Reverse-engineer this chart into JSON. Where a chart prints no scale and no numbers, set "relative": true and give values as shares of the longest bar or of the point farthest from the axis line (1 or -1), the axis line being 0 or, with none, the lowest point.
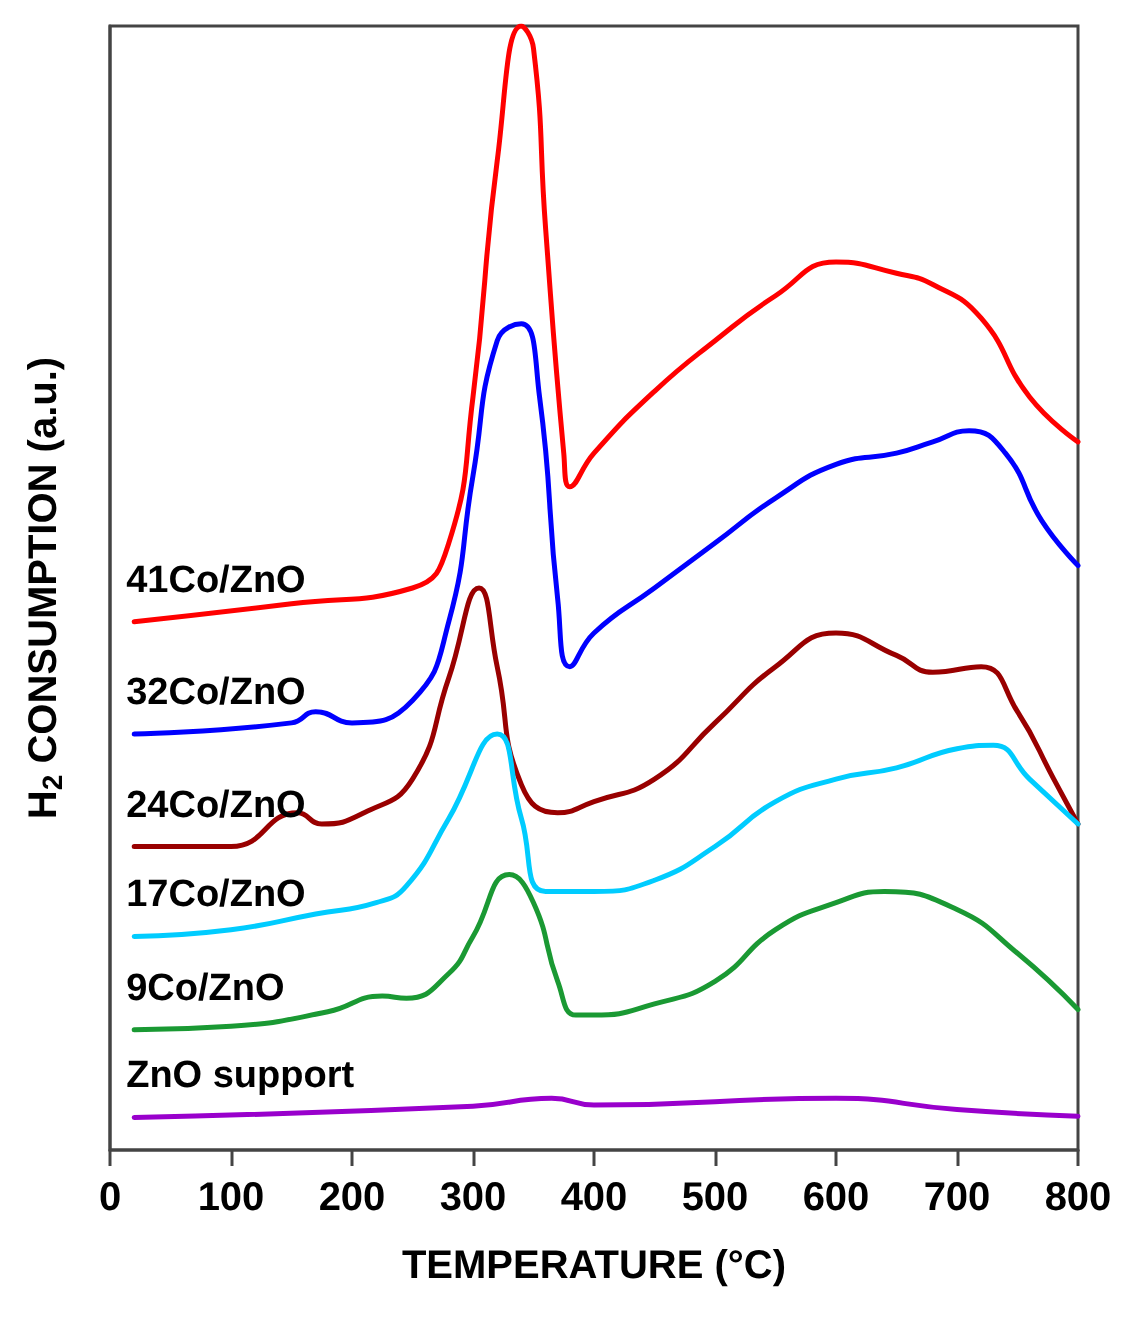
{
  "chart_data": {
    "type": "line",
    "relative": true,
    "xlabel": "TEMPERATURE (°C)",
    "ylabel": "H$_{2}$ CONSUMPTION (a.u.)",
    "xlim": [
      0,
      800
    ],
    "xticks": [
      0,
      100,
      200,
      300,
      400,
      500,
      600,
      700,
      800
    ],
    "marker": "none",
    "grid": false,
    "series": [
      {
        "name": "41Co/ZnO",
        "color": "#ff0000",
        "x": [
          20,
          150,
          250,
          280,
          300,
          320,
          340,
          350,
          360,
          375,
          380,
          400,
          450,
          500,
          550,
          600,
          650,
          680,
          720,
          760,
          800
        ],
        "values": [
          0.47,
          0.486,
          0.5,
          0.54,
          0.67,
          0.88,
          1.0,
          0.98,
          0.82,
          0.62,
          0.59,
          0.62,
          0.675,
          0.72,
          0.76,
          0.79,
          0.78,
          0.77,
          0.74,
          0.67,
          0.63
        ]
      },
      {
        "name": "32Co/ZnO",
        "color": "#0000ff",
        "x": [
          20,
          150,
          170,
          200,
          250,
          280,
          300,
          320,
          340,
          355,
          370,
          380,
          400,
          450,
          500,
          550,
          600,
          650,
          680,
          710,
          740,
          770,
          800
        ],
        "values": [
          0.37,
          0.38,
          0.39,
          0.38,
          0.4,
          0.47,
          0.6,
          0.72,
          0.735,
          0.67,
          0.49,
          0.43,
          0.46,
          0.5,
          0.54,
          0.58,
          0.61,
          0.62,
          0.63,
          0.64,
          0.62,
          0.56,
          0.52
        ]
      },
      {
        "name": "24Co/ZnO",
        "color": "#990000",
        "x": [
          20,
          100,
          155,
          175,
          210,
          250,
          280,
          305,
          320,
          340,
          370,
          400,
          450,
          500,
          550,
          600,
          650,
          680,
          720,
          750,
          780,
          800
        ],
        "values": [
          0.27,
          0.27,
          0.3,
          0.29,
          0.3,
          0.33,
          0.42,
          0.5,
          0.43,
          0.325,
          0.3,
          0.31,
          0.33,
          0.38,
          0.43,
          0.46,
          0.44,
          0.425,
          0.43,
          0.39,
          0.33,
          0.29
        ]
      },
      {
        "name": "17Co/ZnO",
        "color": "#00ccff",
        "x": [
          20,
          100,
          170,
          220,
          245,
          280,
          320,
          340,
          360,
          400,
          450,
          500,
          550,
          600,
          650,
          700,
          730,
          760,
          800
        ],
        "values": [
          0.19,
          0.196,
          0.21,
          0.22,
          0.235,
          0.295,
          0.37,
          0.295,
          0.23,
          0.23,
          0.24,
          0.27,
          0.31,
          0.33,
          0.34,
          0.357,
          0.36,
          0.33,
          0.29
        ]
      },
      {
        "name": "9Co/ZnO",
        "color": "#1a9933",
        "x": [
          20,
          100,
          180,
          225,
          245,
          280,
          300,
          330,
          350,
          370,
          385,
          400,
          450,
          500,
          550,
          600,
          640,
          700,
          750,
          800
        ],
        "values": [
          0.107,
          0.11,
          0.123,
          0.137,
          0.135,
          0.157,
          0.19,
          0.245,
          0.22,
          0.15,
          0.12,
          0.12,
          0.13,
          0.15,
          0.196,
          0.22,
          0.23,
          0.214,
          0.175,
          0.125
        ]
      },
      {
        "name": "ZnO support",
        "color": "#9900cc",
        "x": [
          20,
          300,
          365,
          400,
          600,
          700,
          800
        ],
        "values": [
          0.029,
          0.039,
          0.046,
          0.04,
          0.046,
          0.036,
          0.03
        ]
      }
    ]
  }
}
